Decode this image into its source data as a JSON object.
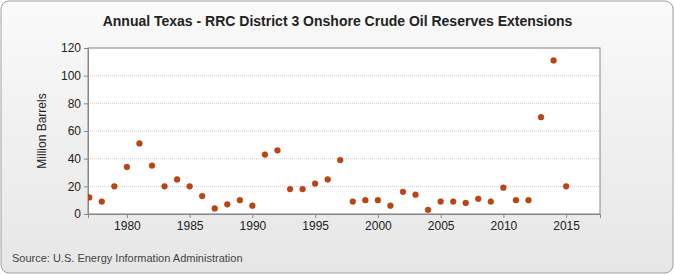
{
  "chart_data": {
    "type": "scatter",
    "title": "Annual Texas - RRC District 3 Onshore Crude Oil Reserves Extensions",
    "y_label": "Million Barrels",
    "source": "Source: U.S. Energy Information Administration",
    "x": [
      1977,
      1978,
      1979,
      1980,
      1981,
      1982,
      1983,
      1984,
      1985,
      1986,
      1987,
      1988,
      1989,
      1990,
      1991,
      1992,
      1993,
      1994,
      1995,
      1996,
      1997,
      1998,
      1999,
      2000,
      2001,
      2002,
      2003,
      2004,
      2005,
      2006,
      2007,
      2008,
      2009,
      2010,
      2011,
      2012,
      2013,
      2014,
      2015
    ],
    "values": [
      12,
      9,
      20,
      34,
      51,
      35,
      20,
      25,
      20,
      13,
      4,
      7,
      10,
      6,
      43,
      46,
      18,
      18,
      22,
      25,
      39,
      9,
      10,
      10,
      6,
      16,
      14,
      3,
      9,
      9,
      8,
      11,
      9,
      19,
      10,
      10,
      70,
      111,
      20
    ],
    "color": "#c1440e",
    "marker": "circle",
    "xlim": [
      1976.9,
      2017.7
    ],
    "xticks": [
      1980,
      1985,
      1990,
      1995,
      2000,
      2005,
      2010,
      2015
    ],
    "ylim": [
      0,
      120
    ],
    "yticks": [
      0,
      20,
      40,
      60,
      80,
      100,
      120
    ],
    "grid": true
  }
}
